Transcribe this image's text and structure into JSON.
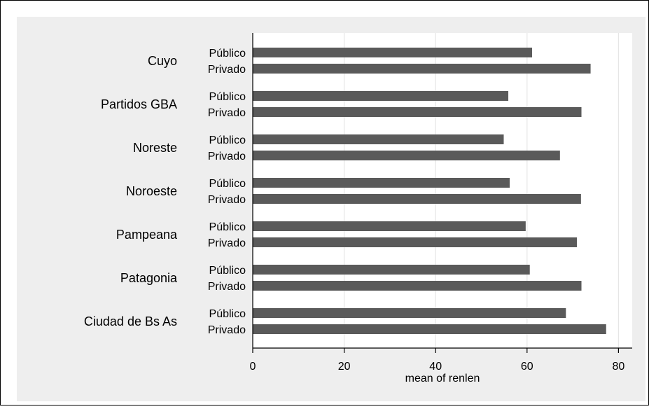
{
  "chart_data": {
    "type": "bar",
    "orientation": "horizontal",
    "xlabel": "mean of renlen",
    "xlim": [
      0,
      83
    ],
    "xticks": [
      0,
      20,
      40,
      60,
      80
    ],
    "grid": true,
    "bar_color": "#5a5a5a",
    "groups": [
      {
        "name": "Cuyo",
        "bars": [
          {
            "label": "Público",
            "value": 61.1
          },
          {
            "label": "Privado",
            "value": 73.9
          }
        ]
      },
      {
        "name": "Partidos GBA",
        "bars": [
          {
            "label": "Público",
            "value": 55.9
          },
          {
            "label": "Privado",
            "value": 71.9
          }
        ]
      },
      {
        "name": "Noreste",
        "bars": [
          {
            "label": "Público",
            "value": 54.9
          },
          {
            "label": "Privado",
            "value": 67.2
          }
        ]
      },
      {
        "name": "Noroeste",
        "bars": [
          {
            "label": "Público",
            "value": 56.2
          },
          {
            "label": "Privado",
            "value": 71.8
          }
        ]
      },
      {
        "name": "Pampeana",
        "bars": [
          {
            "label": "Público",
            "value": 59.7
          },
          {
            "label": "Privado",
            "value": 70.9
          }
        ]
      },
      {
        "name": "Patagonia",
        "bars": [
          {
            "label": "Público",
            "value": 60.6
          },
          {
            "label": "Privado",
            "value": 71.9
          }
        ]
      },
      {
        "name": "Ciudad de Bs As",
        "bars": [
          {
            "label": "Público",
            "value": 68.5
          },
          {
            "label": "Privado",
            "value": 77.3
          }
        ]
      }
    ]
  }
}
